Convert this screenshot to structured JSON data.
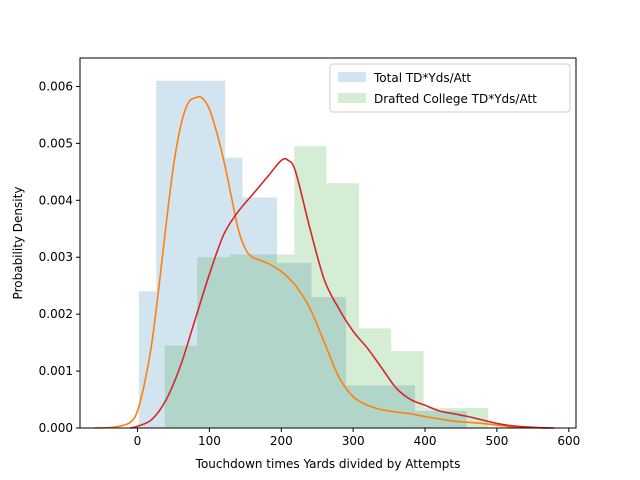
{
  "chart_data": {
    "type": "histogram",
    "xlabel": "Touchdown times Yards divided by Attempts",
    "ylabel": "Probability Density",
    "xlim": [
      -80,
      610
    ],
    "ylim": [
      0,
      0.0065
    ],
    "xticks": [
      0,
      100,
      200,
      300,
      400,
      500,
      600
    ],
    "yticks": [
      0.0,
      0.001,
      0.002,
      0.003,
      0.004,
      0.005,
      0.006
    ],
    "ytick_labels": [
      "0.000",
      "0.001",
      "0.002",
      "0.003",
      "0.004",
      "0.005",
      "0.006"
    ],
    "legend_position": "top-right",
    "histograms": [
      {
        "name": "Total TD*Yds/Att",
        "color": "#1f77b4",
        "alpha": 0.2,
        "bins": [
          {
            "x0": 2,
            "x1": 26,
            "y": 0.0024
          },
          {
            "x0": 26,
            "x1": 50,
            "y": 0.0061
          },
          {
            "x0": 50,
            "x1": 74,
            "y": 0.0061
          },
          {
            "x0": 74,
            "x1": 98,
            "y": 0.0061
          },
          {
            "x0": 98,
            "x1": 122,
            "y": 0.0061
          },
          {
            "x0": 122,
            "x1": 146,
            "y": 0.00475
          },
          {
            "x0": 146,
            "x1": 170,
            "y": 0.00405
          },
          {
            "x0": 170,
            "x1": 194,
            "y": 0.00405
          },
          {
            "x0": 194,
            "x1": 218,
            "y": 0.0029
          },
          {
            "x0": 218,
            "x1": 242,
            "y": 0.0029
          },
          {
            "x0": 242,
            "x1": 266,
            "y": 0.0023
          },
          {
            "x0": 266,
            "x1": 290,
            "y": 0.0023
          },
          {
            "x0": 290,
            "x1": 314,
            "y": 0.00075
          },
          {
            "x0": 314,
            "x1": 338,
            "y": 0.00075
          },
          {
            "x0": 338,
            "x1": 362,
            "y": 0.00075
          },
          {
            "x0": 362,
            "x1": 386,
            "y": 0.00075
          },
          {
            "x0": 386,
            "x1": 410,
            "y": 0.0003
          },
          {
            "x0": 410,
            "x1": 434,
            "y": 0.0003
          },
          {
            "x0": 434,
            "x1": 458,
            "y": 0.0003
          }
        ]
      },
      {
        "name": "Drafted College TD*Yds/Att",
        "color": "#2ca02c",
        "alpha": 0.2,
        "bins": [
          {
            "x0": 38,
            "x1": 83,
            "y": 0.00145
          },
          {
            "x0": 83,
            "x1": 128,
            "y": 0.003
          },
          {
            "x0": 128,
            "x1": 173,
            "y": 0.00305
          },
          {
            "x0": 173,
            "x1": 218,
            "y": 0.00305
          },
          {
            "x0": 218,
            "x1": 263,
            "y": 0.00495
          },
          {
            "x0": 263,
            "x1": 308,
            "y": 0.0043
          },
          {
            "x0": 308,
            "x1": 353,
            "y": 0.00175
          },
          {
            "x0": 353,
            "x1": 398,
            "y": 0.00135
          },
          {
            "x0": 398,
            "x1": 443,
            "y": 0.00035
          },
          {
            "x0": 443,
            "x1": 488,
            "y": 0.00035
          }
        ]
      }
    ],
    "kde_series": [
      {
        "color": "#ff7f0e",
        "x": [
          -60,
          -30,
          -10,
          0,
          10,
          20,
          30,
          40,
          50,
          60,
          70,
          80,
          90,
          100,
          110,
          120,
          130,
          140,
          150,
          160,
          180,
          200,
          220,
          240,
          260,
          280,
          300,
          320,
          340,
          360,
          380,
          400,
          420,
          440,
          460,
          480,
          500,
          520,
          540,
          570
        ],
        "y": [
          0.0,
          2e-05,
          0.0001,
          0.0003,
          0.0008,
          0.0015,
          0.0025,
          0.0036,
          0.0046,
          0.0053,
          0.0057,
          0.0058,
          0.0058,
          0.0056,
          0.0052,
          0.0047,
          0.0041,
          0.0035,
          0.00315,
          0.003,
          0.0029,
          0.00275,
          0.0025,
          0.0021,
          0.0015,
          0.0009,
          0.00055,
          0.0004,
          0.00032,
          0.00028,
          0.00025,
          0.0002,
          0.00016,
          0.00012,
          0.0001,
          8e-05,
          5e-05,
          2e-05,
          1e-05,
          0.0
        ]
      },
      {
        "color": "#d62728",
        "x": [
          -10,
          0,
          20,
          40,
          60,
          80,
          100,
          120,
          140,
          160,
          180,
          200,
          210,
          220,
          240,
          260,
          280,
          300,
          320,
          340,
          360,
          380,
          400,
          420,
          440,
          460,
          480,
          500,
          520,
          540,
          560,
          580
        ],
        "y": [
          0.0,
          3e-05,
          0.00015,
          0.0005,
          0.0011,
          0.0019,
          0.0027,
          0.0034,
          0.0038,
          0.0041,
          0.0044,
          0.0047,
          0.0047,
          0.0045,
          0.0035,
          0.0026,
          0.0021,
          0.0017,
          0.0014,
          0.00105,
          0.0007,
          0.0005,
          0.0004,
          0.0003,
          0.00025,
          0.0002,
          0.00014,
          8e-05,
          4e-05,
          2e-05,
          5e-06,
          0.0
        ]
      }
    ]
  }
}
